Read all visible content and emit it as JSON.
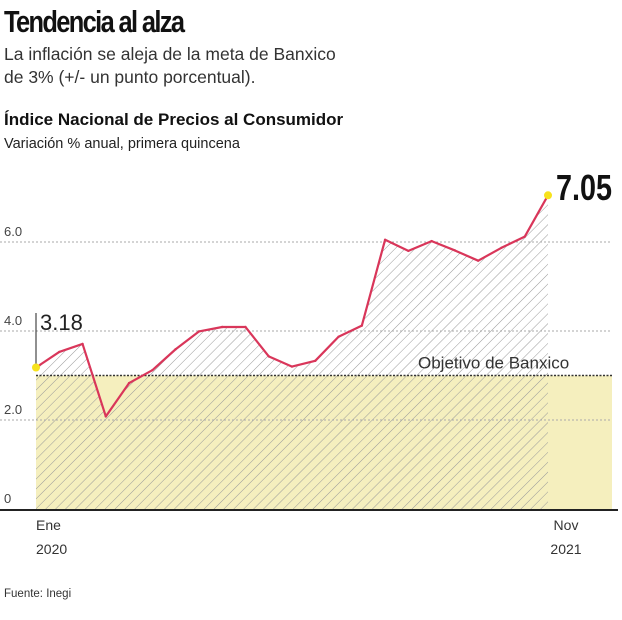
{
  "header": {
    "title": "Tendencia al alza",
    "subtitle_line1": "La inflación se aleja de la meta de Banxico",
    "subtitle_line2": "de 3% (+/- un punto porcentual)."
  },
  "footer": {
    "source": "Fuente: Inegi"
  },
  "chart_data": {
    "type": "line",
    "title": "Índice Nacional de Precios al Consumidor",
    "subtitle": "Variación % anual, primera quincena",
    "x_start_label": [
      "Ene",
      "2020"
    ],
    "x_end_label": [
      "Nov",
      "2021"
    ],
    "x": [
      "2020-01",
      "2020-02",
      "2020-03",
      "2020-04",
      "2020-05",
      "2020-06",
      "2020-07",
      "2020-08",
      "2020-09",
      "2020-10",
      "2020-11",
      "2020-12",
      "2021-01",
      "2021-02",
      "2021-03",
      "2021-04",
      "2021-05",
      "2021-06",
      "2021-07",
      "2021-08",
      "2021-09",
      "2021-10",
      "2021-11"
    ],
    "values": [
      3.18,
      3.53,
      3.71,
      2.08,
      2.83,
      3.12,
      3.59,
      3.99,
      4.09,
      4.09,
      3.43,
      3.2,
      3.33,
      3.87,
      4.12,
      6.05,
      5.8,
      6.02,
      5.81,
      5.58,
      5.87,
      6.12,
      7.05
    ],
    "yticks": [
      0,
      2.0,
      4.0,
      6.0
    ],
    "ytick_labels": [
      "0",
      "2.0",
      "4.0",
      "6.0"
    ],
    "ylim": [
      0,
      7.8
    ],
    "grid": true,
    "target": {
      "value": 3.0,
      "band": [
        0,
        3.0
      ],
      "label": "Objetivo de Banxico"
    },
    "annotations": [
      {
        "index": 0,
        "label": "3.18"
      },
      {
        "index": 22,
        "label": "7.05"
      }
    ],
    "colors": {
      "line": "#d9365a",
      "band": "#f5efbe",
      "hatch": "#9a9a9a",
      "marker": "#f7e21c",
      "target_line": "#333333"
    }
  }
}
